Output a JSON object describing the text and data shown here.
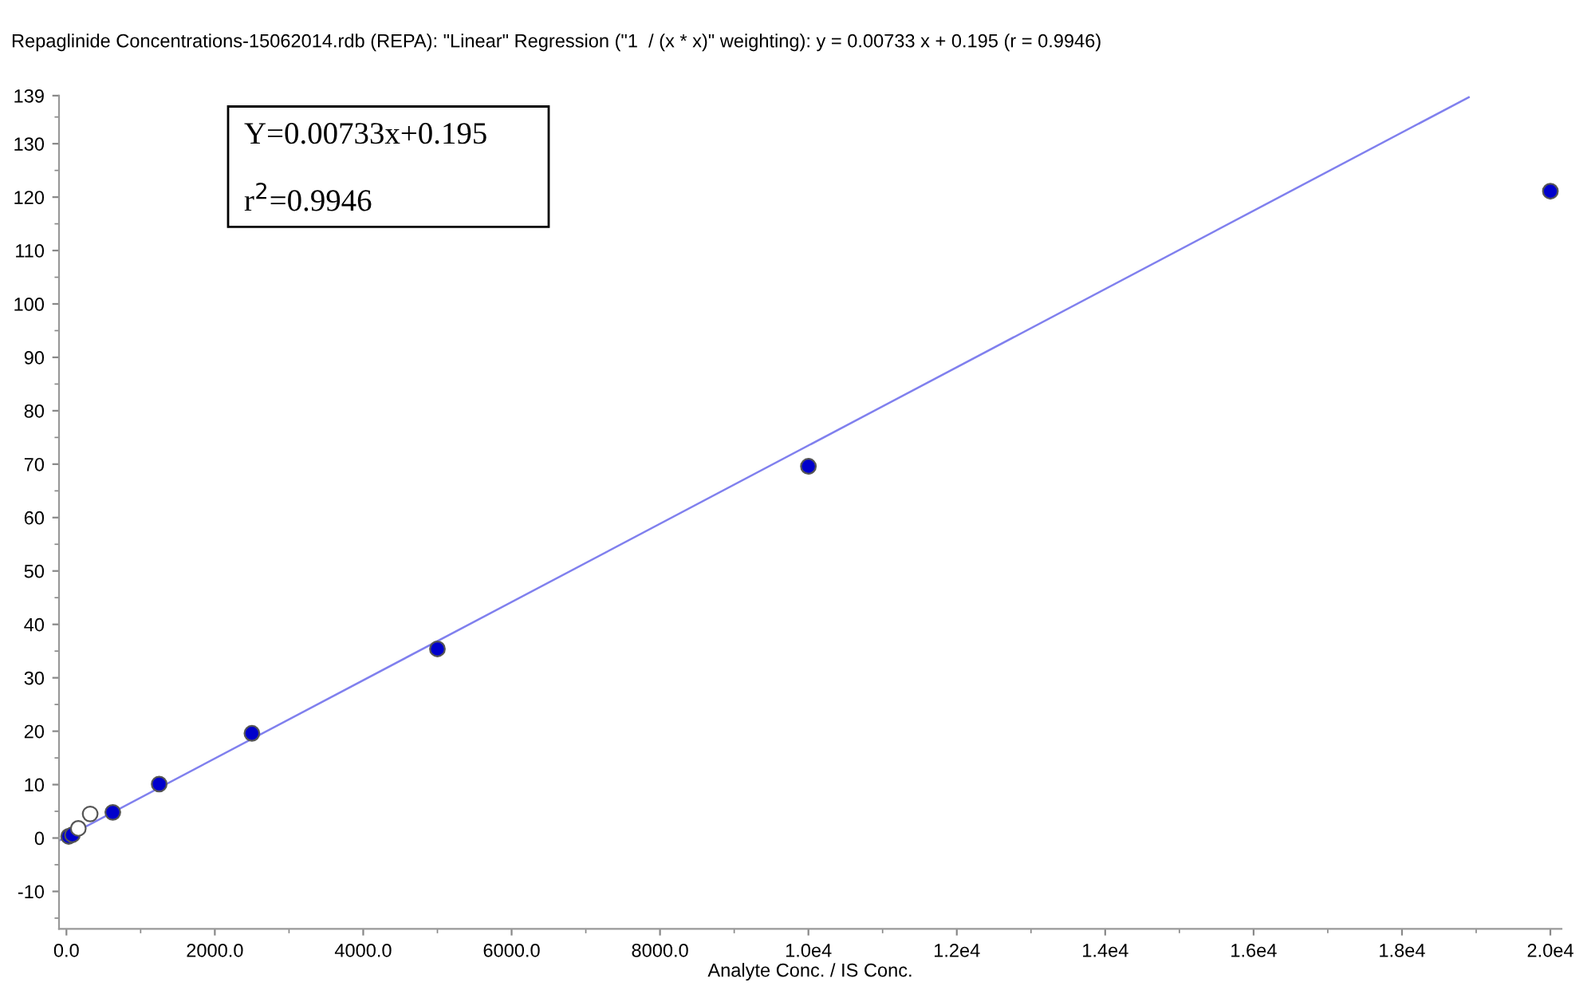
{
  "chart_data": {
    "type": "scatter",
    "title": "Repaglinide Concentrations-15062014.rdb (REPA): \"Linear\" Regression (\"1  / (x * x)\" weighting): y = 0.00733 x + 0.195 (r = 0.9946)",
    "xlabel": "Analyte Conc. / IS Conc.",
    "annotations": [
      "Y=0.00733x+0.195",
      "r$^{2}$=0.9946"
    ],
    "series": [
      {
        "type": "line",
        "marker": "none",
        "color": "#8080ee",
        "x": [
          -100,
          18900
        ],
        "values": [
          -0.5,
          138.7
        ]
      },
      {
        "color": "#0000cc",
        "x": [
          30,
          80,
          625,
          1250,
          2500,
          5000,
          10000,
          20000
        ],
        "values": [
          0.3,
          0.6,
          4.8,
          10.1,
          19.6,
          35.4,
          69.6,
          121.1
        ]
      },
      {
        "color": "#ffffff",
        "x": [
          160,
          320
        ],
        "values": [
          1.8,
          4.5
        ]
      }
    ],
    "xlim": [
      -100,
      20150
    ],
    "ylim": [
      -17,
      139
    ],
    "xticks": [
      {
        "value": 0,
        "label": "0.0"
      },
      {
        "value": 2000,
        "label": "2000.0"
      },
      {
        "value": 4000,
        "label": "4000.0"
      },
      {
        "value": 6000,
        "label": "6000.0"
      },
      {
        "value": 8000,
        "label": "8000.0"
      },
      {
        "value": 10000,
        "label": "1.0e4"
      },
      {
        "value": 12000,
        "label": "1.2e4"
      },
      {
        "value": 14000,
        "label": "1.4e4"
      },
      {
        "value": 16000,
        "label": "1.6e4"
      },
      {
        "value": 18000,
        "label": "1.8e4"
      },
      {
        "value": 20000,
        "label": "2.0e4"
      }
    ],
    "yticks": [
      -10,
      0,
      10,
      20,
      30,
      40,
      50,
      60,
      70,
      80,
      90,
      100,
      110,
      120,
      130,
      139
    ],
    "grid": false,
    "legend": false
  }
}
